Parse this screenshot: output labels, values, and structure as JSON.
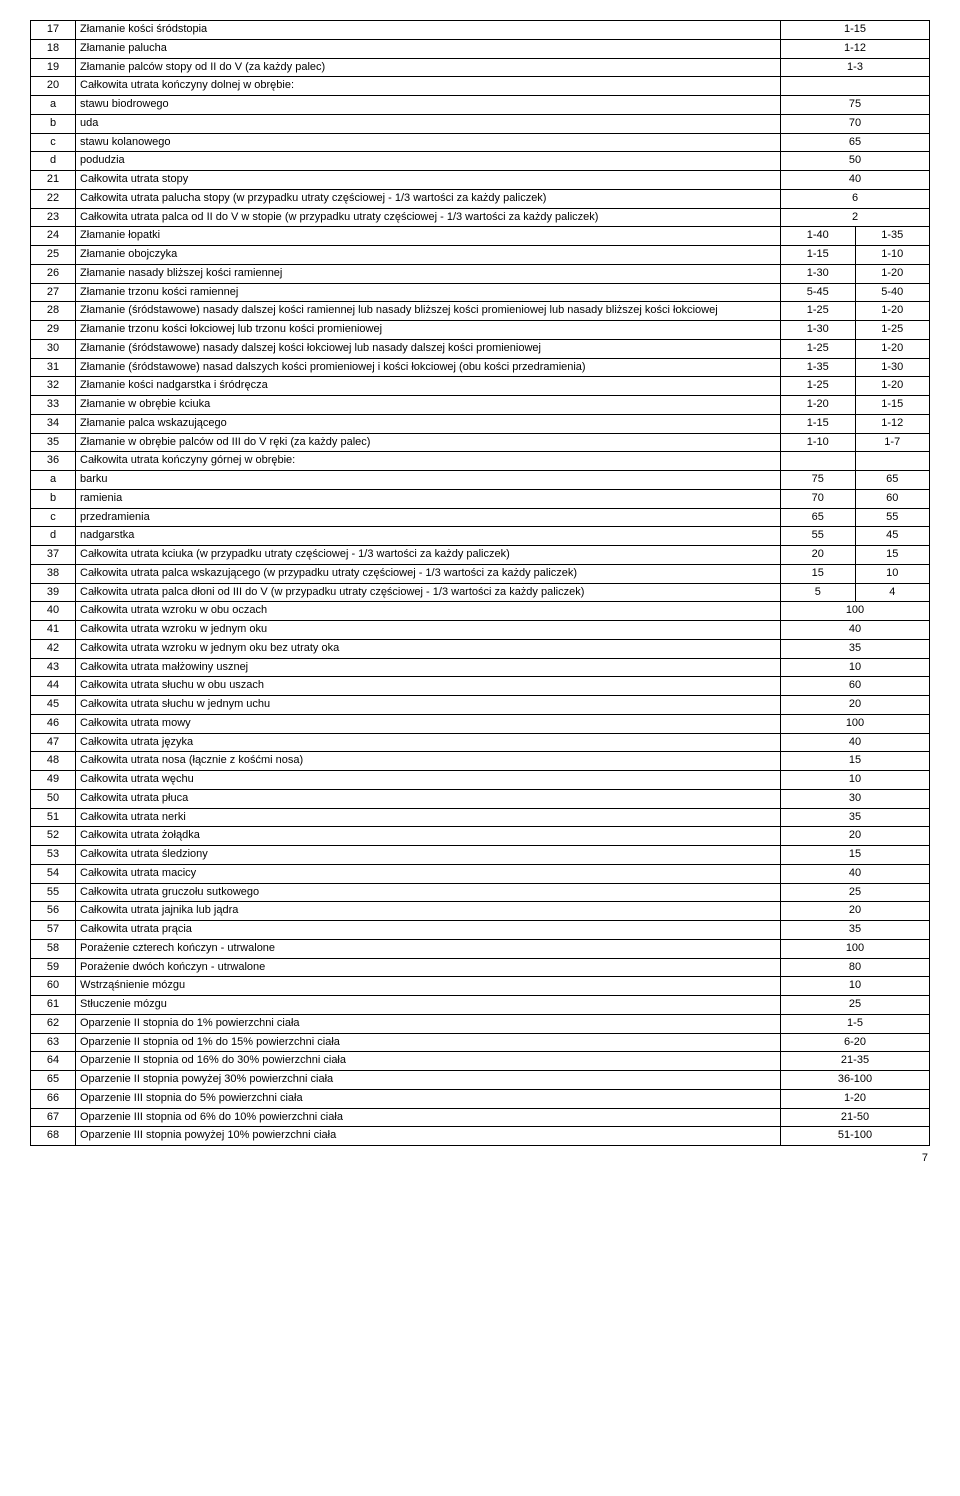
{
  "page_number": "7",
  "table": {
    "col_widths": {
      "num": 36,
      "v1": 70,
      "v2": 70
    },
    "rows": [
      {
        "n": "17",
        "d": "Złamanie kości śródstopia",
        "v1": "1-15",
        "span": 2
      },
      {
        "n": "18",
        "d": "Złamanie palucha",
        "v1": "1-12",
        "span": 2
      },
      {
        "n": "19",
        "d": "Złamanie palców stopy od II do V (za każdy palec)",
        "v1": "1-3",
        "span": 2
      },
      {
        "n": "20",
        "d": "Całkowita utrata kończyny dolnej w obrębie:",
        "v1": "",
        "span": 2
      },
      {
        "n": "a",
        "d": "stawu biodrowego",
        "v1": "75",
        "span": 2
      },
      {
        "n": "b",
        "d": "uda",
        "v1": "70",
        "span": 2
      },
      {
        "n": "c",
        "d": "stawu kolanowego",
        "v1": "65",
        "span": 2
      },
      {
        "n": "d",
        "d": "podudzia",
        "v1": "50",
        "span": 2
      },
      {
        "n": "21",
        "d": "Całkowita utrata stopy",
        "v1": "40",
        "span": 2
      },
      {
        "n": "22",
        "d": "Całkowita utrata palucha stopy (w przypadku utraty częściowej - 1/3 wartości za każdy paliczek)",
        "v1": "6",
        "span": 2
      },
      {
        "n": "23",
        "d": "Całkowita utrata palca od II do V w stopie (w przypadku utraty częściowej - 1/3 wartości za każdy paliczek)",
        "v1": "2",
        "span": 2
      },
      {
        "n": "24",
        "d": "Złamanie łopatki",
        "v1": "1-40",
        "v2": "1-35"
      },
      {
        "n": "25",
        "d": "Złamanie obojczyka",
        "v1": "1-15",
        "v2": "1-10"
      },
      {
        "n": "26",
        "d": "Złamanie nasady bliższej kości ramiennej",
        "v1": "1-30",
        "v2": "1-20"
      },
      {
        "n": "27",
        "d": "Złamanie trzonu kości ramiennej",
        "v1": "5-45",
        "v2": "5-40"
      },
      {
        "n": "28",
        "d": "Złamanie (śródstawowe) nasady dalszej kości ramiennej lub nasady bliższej kości promieniowej lub nasady bliższej kości łokciowej",
        "v1": "1-25",
        "v2": "1-20"
      },
      {
        "n": "29",
        "d": "Złamanie trzonu kości łokciowej lub trzonu kości promieniowej",
        "v1": "1-30",
        "v2": "1-25"
      },
      {
        "n": "30",
        "d": "Złamanie (śródstawowe) nasady dalszej kości łokciowej lub nasady dalszej kości promieniowej",
        "v1": "1-25",
        "v2": "1-20"
      },
      {
        "n": "31",
        "d": "Złamanie (śródstawowe) nasad dalszych kości promieniowej i kości łokciowej (obu kości przedramienia)",
        "v1": "1-35",
        "v2": "1-30"
      },
      {
        "n": "32",
        "d": "Złamanie kości nadgarstka i śródręcza",
        "v1": "1-25",
        "v2": "1-20"
      },
      {
        "n": "33",
        "d": "Złamanie w obrębie kciuka",
        "v1": "1-20",
        "v2": "1-15"
      },
      {
        "n": "34",
        "d": "Złamanie palca wskazującego",
        "v1": "1-15",
        "v2": "1-12"
      },
      {
        "n": "35",
        "d": "Złamanie w obrębie palców od III do V ręki (za każdy palec)",
        "v1": "1-10",
        "v2": "1-7"
      },
      {
        "n": "36",
        "d": "Całkowita utrata kończyny górnej w obrębie:",
        "v1": "",
        "v2": ""
      },
      {
        "n": "a",
        "d": "barku",
        "v1": "75",
        "v2": "65"
      },
      {
        "n": "b",
        "d": "ramienia",
        "v1": "70",
        "v2": "60"
      },
      {
        "n": "c",
        "d": "przedramienia",
        "v1": "65",
        "v2": "55"
      },
      {
        "n": "d",
        "d": "nadgarstka",
        "v1": "55",
        "v2": "45"
      },
      {
        "n": "37",
        "d": "Całkowita utrata kciuka (w przypadku utraty częściowej - 1/3 wartości za każdy paliczek)",
        "v1": "20",
        "v2": "15"
      },
      {
        "n": "38",
        "d": "Całkowita utrata palca wskazującego (w przypadku utraty częściowej - 1/3 wartości za każdy paliczek)",
        "v1": "15",
        "v2": "10"
      },
      {
        "n": "39",
        "d": "Całkowita utrata palca dłoni od III do V (w przypadku utraty częściowej - 1/3 wartości za każdy paliczek)",
        "v1": "5",
        "v2": "4"
      },
      {
        "n": "40",
        "d": "Całkowita utrata wzroku w obu oczach",
        "v1": "100",
        "span": 2
      },
      {
        "n": "41",
        "d": "Całkowita utrata wzroku w jednym oku",
        "v1": "40",
        "span": 2
      },
      {
        "n": "42",
        "d": "Całkowita utrata wzroku w jednym oku bez utraty oka",
        "v1": "35",
        "span": 2
      },
      {
        "n": "43",
        "d": "Całkowita utrata małżowiny usznej",
        "v1": "10",
        "span": 2
      },
      {
        "n": "44",
        "d": "Całkowita utrata słuchu w obu uszach",
        "v1": "60",
        "span": 2
      },
      {
        "n": "45",
        "d": "Całkowita utrata słuchu w jednym uchu",
        "v1": "20",
        "span": 2
      },
      {
        "n": "46",
        "d": "Całkowita utrata mowy",
        "v1": "100",
        "span": 2
      },
      {
        "n": "47",
        "d": "Całkowita utrata języka",
        "v1": "40",
        "span": 2
      },
      {
        "n": "48",
        "d": "Całkowita utrata nosa (łącznie z kośćmi nosa)",
        "v1": "15",
        "span": 2
      },
      {
        "n": "49",
        "d": "Całkowita utrata węchu",
        "v1": "10",
        "span": 2
      },
      {
        "n": "50",
        "d": "Całkowita utrata płuca",
        "v1": "30",
        "span": 2
      },
      {
        "n": "51",
        "d": "Całkowita utrata nerki",
        "v1": "35",
        "span": 2
      },
      {
        "n": "52",
        "d": "Całkowita utrata żołądka",
        "v1": "20",
        "span": 2
      },
      {
        "n": "53",
        "d": "Całkowita utrata śledziony",
        "v1": "15",
        "span": 2
      },
      {
        "n": "54",
        "d": "Całkowita utrata macicy",
        "v1": "40",
        "span": 2
      },
      {
        "n": "55",
        "d": "Całkowita utrata gruczołu sutkowego",
        "v1": "25",
        "span": 2
      },
      {
        "n": "56",
        "d": "Całkowita utrata jajnika lub jądra",
        "v1": "20",
        "span": 2
      },
      {
        "n": "57",
        "d": "Całkowita utrata prącia",
        "v1": "35",
        "span": 2
      },
      {
        "n": "58",
        "d": "Porażenie czterech kończyn - utrwalone",
        "v1": "100",
        "span": 2
      },
      {
        "n": "59",
        "d": "Porażenie dwóch kończyn - utrwalone",
        "v1": "80",
        "span": 2
      },
      {
        "n": "60",
        "d": "Wstrząśnienie mózgu",
        "v1": "10",
        "span": 2
      },
      {
        "n": "61",
        "d": "Stłuczenie mózgu",
        "v1": "25",
        "span": 2
      },
      {
        "n": "62",
        "d": "Oparzenie II stopnia do 1% powierzchni ciała",
        "v1": "1-5",
        "span": 2
      },
      {
        "n": "63",
        "d": "Oparzenie II stopnia od 1% do 15% powierzchni ciała",
        "v1": "6-20",
        "span": 2
      },
      {
        "n": "64",
        "d": "Oparzenie II stopnia od 16% do 30% powierzchni ciała",
        "v1": "21-35",
        "span": 2
      },
      {
        "n": "65",
        "d": "Oparzenie II stopnia powyżej 30% powierzchni ciała",
        "v1": "36-100",
        "span": 2
      },
      {
        "n": "66",
        "d": "Oparzenie III stopnia do 5% powierzchni ciała",
        "v1": "1-20",
        "span": 2
      },
      {
        "n": "67",
        "d": "Oparzenie III stopnia od 6% do 10% powierzchni ciała",
        "v1": "21-50",
        "span": 2
      },
      {
        "n": "68",
        "d": "Oparzenie III stopnia powyżej 10% powierzchni ciała",
        "v1": "51-100",
        "span": 2
      }
    ]
  }
}
